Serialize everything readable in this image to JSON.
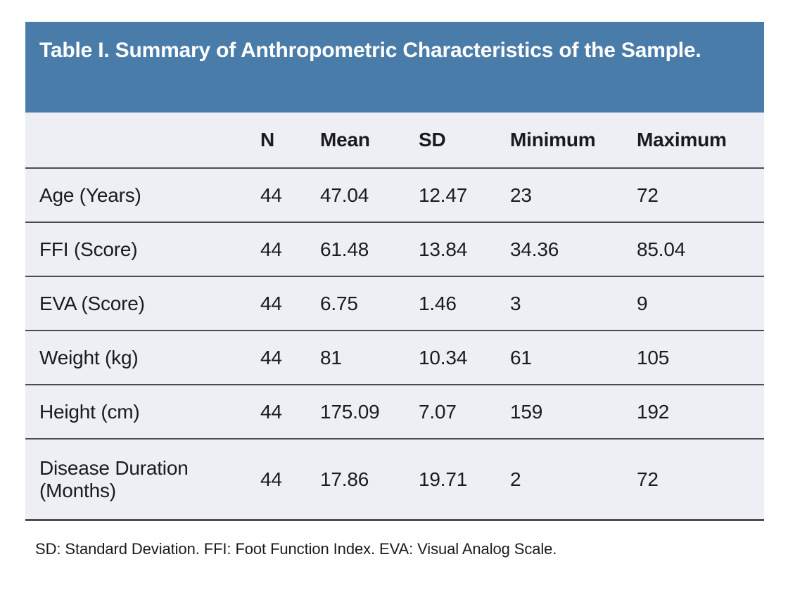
{
  "title": "Table I. Summary of Anthropometric Characteristics of the Sample.",
  "colors": {
    "banner_bg": "#4a7caa",
    "banner_text": "#ffffff",
    "row_bg": "#edeff5",
    "divider": "#4b4d52",
    "text": "#1b1b1d"
  },
  "table": {
    "columns": {
      "label": "",
      "n": "N",
      "mean": "Mean",
      "sd": "SD",
      "min": "Minimum",
      "max": "Maximum"
    },
    "rows": [
      {
        "label": "Age (Years)",
        "n": "44",
        "mean": "47.04",
        "sd": "12.47",
        "min": "23",
        "max": "72"
      },
      {
        "label": "FFI (Score)",
        "n": "44",
        "mean": "61.48",
        "sd": "13.84",
        "min": "34.36",
        "max": "85.04"
      },
      {
        "label": "EVA (Score)",
        "n": "44",
        "mean": "6.75",
        "sd": "1.46",
        "min": "3",
        "max": "9"
      },
      {
        "label": "Weight (kg)",
        "n": "44",
        "mean": "81",
        "sd": "10.34",
        "min": "61",
        "max": "105"
      },
      {
        "label": "Height (cm)",
        "n": "44",
        "mean": "175.09",
        "sd": "7.07",
        "min": "159",
        "max": "192"
      },
      {
        "label": "Disease Duration (Months)",
        "n": "44",
        "mean": "17.86",
        "sd": "19.71",
        "min": "2",
        "max": "72"
      }
    ]
  },
  "footnote": "SD: Standard Deviation. FFI: Foot Function Index. EVA: Visual Analog Scale."
}
